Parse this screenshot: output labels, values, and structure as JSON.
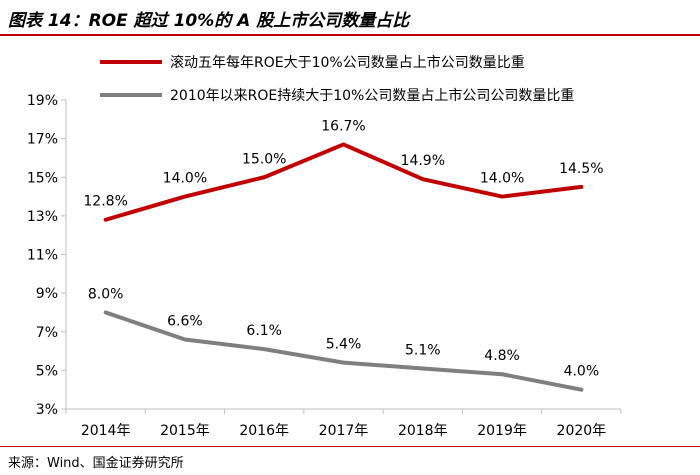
{
  "figure": {
    "title": "图表 14：ROE 超过 10%的 A 股上市公司数量占比",
    "source": "来源：Wind、国金证券研究所"
  },
  "chart_data": {
    "type": "line",
    "categories": [
      "2014年",
      "2015年",
      "2016年",
      "2017年",
      "2018年",
      "2019年",
      "2020年"
    ],
    "series": [
      {
        "name": "滚动五年每年ROE大于10%公司数量占上市公司数量比重",
        "color": "#c00000",
        "values": [
          12.8,
          14.0,
          15.0,
          16.7,
          14.9,
          14.0,
          14.5
        ],
        "labels": [
          "12.8%",
          "14.0%",
          "15.0%",
          "16.7%",
          "14.9%",
          "14.0%",
          "14.5%"
        ]
      },
      {
        "name": "2010年以来ROE持续大于10%公司数量占上市公司公司数量比重",
        "color": "#7f7f7f",
        "values": [
          8.0,
          6.6,
          6.1,
          5.4,
          5.1,
          4.8,
          4.0
        ],
        "labels": [
          "8.0%",
          "6.6%",
          "6.1%",
          "5.4%",
          "5.1%",
          "4.8%",
          "4.0%"
        ]
      }
    ],
    "yticks": [
      3,
      5,
      7,
      9,
      11,
      13,
      15,
      17,
      19
    ],
    "ytick_labels": [
      "3%",
      "5%",
      "7%",
      "9%",
      "11%",
      "13%",
      "15%",
      "17%",
      "19%"
    ],
    "ylim": [
      3,
      19
    ],
    "xlabel": "",
    "ylabel": "",
    "legend": "top",
    "grid": false
  }
}
